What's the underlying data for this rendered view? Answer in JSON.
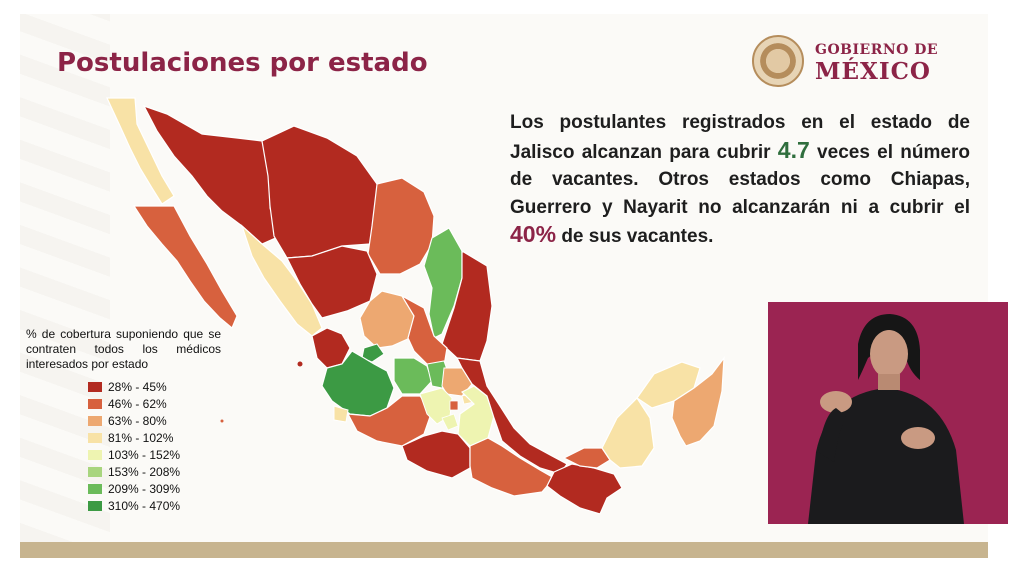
{
  "slide": {
    "title": "Postulaciones por estado",
    "logo": {
      "line1": "GOBIERNO DE",
      "line2": "MÉXICO"
    },
    "text": {
      "part1": "Los postulantes registrados en el estado de Jalisco alcanzan para cubrir ",
      "value1": "4.7",
      "part2": " veces el número de vacantes. Otros estados como Chiapas, Guerrero y Nayarit no alcanzarán ni a cubrir el ",
      "value2": "40%",
      "part3": " de sus vacantes."
    },
    "legend": {
      "title": "% de cobertura suponiendo que se contraten todos los médicos interesados por estado",
      "items": [
        {
          "label": "28% - 45%",
          "color": "#b22a20"
        },
        {
          "label": "46% - 62%",
          "color": "#d7613e"
        },
        {
          "label": "63% - 80%",
          "color": "#eda871"
        },
        {
          "label": "81% - 102%",
          "color": "#f8e2a6"
        },
        {
          "label": "103% - 152%",
          "color": "#eef4b1"
        },
        {
          "label": "153% - 208%",
          "color": "#a8d57e"
        },
        {
          "label": "209% - 309%",
          "color": "#6bbb5a"
        },
        {
          "label": "310% - 470%",
          "color": "#3c9a44"
        }
      ]
    }
  },
  "colors": {
    "title": "#8c2447",
    "highlight_green": "#2f6e3d",
    "highlight_maroon": "#8c2447",
    "footer": "#c7b48f",
    "interpreter_bg": "#9b2452"
  }
}
